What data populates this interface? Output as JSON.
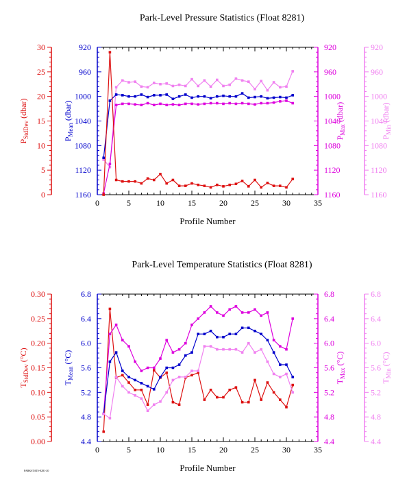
{
  "footer": "PARKSTATS-8281-20",
  "colors": {
    "stddev": "#dd1111",
    "mean": "#0000cc",
    "max": "#dd00dd",
    "min": "#f080f0",
    "axis_black": "#000000"
  },
  "chart_data": [
    {
      "type": "line",
      "title": "Park-Level Pressure Statistics (Float 8281)",
      "xlabel": "Profile Number",
      "xlim": [
        0,
        35
      ],
      "xticks": [
        0,
        5,
        10,
        15,
        20,
        25,
        30,
        35
      ],
      "grid": false,
      "axes": {
        "stddev": {
          "label_main": "P",
          "label_sub": "StdDev",
          "label_unit": " (dbar)",
          "range": [
            0,
            30
          ],
          "ticks": [
            "0",
            "5",
            "10",
            "15",
            "20",
            "25",
            "30"
          ],
          "reversed": false
        },
        "mean": {
          "label_main": "P",
          "label_sub": "Mean",
          "label_unit": " (dbar)",
          "range": [
            920,
            1160
          ],
          "ticks": [
            "920",
            "960",
            "1000",
            "1040",
            "1080",
            "1120",
            "1160"
          ],
          "reversed": true
        },
        "max": {
          "label_main": "P",
          "label_sub": "Max",
          "label_unit": " (dbar)",
          "range": [
            920,
            1160
          ],
          "ticks": [
            "920",
            "960",
            "1000",
            "1040",
            "1080",
            "1120",
            "1160"
          ],
          "reversed": true
        },
        "min": {
          "label_main": "P",
          "label_sub": "Min",
          "label_unit": " (dbar)",
          "range": [
            920,
            1160
          ],
          "ticks": [
            "920",
            "960",
            "1000",
            "1040",
            "1080",
            "1120",
            "1160"
          ],
          "reversed": true
        }
      },
      "series": [
        {
          "axis": "min",
          "values": [
            1103,
            1115,
            985,
            974,
            977,
            976,
            984,
            985,
            978,
            980,
            979,
            983,
            981,
            983,
            972,
            983,
            974,
            984,
            973,
            983,
            981,
            971,
            974,
            976,
            988,
            975,
            990,
            977,
            985,
            984,
            959
          ]
        },
        {
          "axis": "mean",
          "values": [
            1100,
            1007,
            997,
            998,
            1000,
            1000,
            997,
            1001,
            998,
            998,
            997,
            1004,
            1000,
            997,
            1002,
            1000,
            1000,
            1003,
            1000,
            999,
            1000,
            1000,
            995,
            1002,
            1001,
            1000,
            1003,
            1002,
            1001,
            1002,
            998
          ]
        },
        {
          "axis": "max",
          "values": [
            1158,
            1110,
            1014,
            1012,
            1012,
            1013,
            1014,
            1011,
            1014,
            1012,
            1014,
            1013,
            1014,
            1012,
            1012,
            1013,
            1012,
            1011,
            1011,
            1012,
            1011,
            1012,
            1011,
            1012,
            1013,
            1011,
            1011,
            1010,
            1008,
            1007,
            1011
          ]
        },
        {
          "axis": "stddev",
          "values": [
            0.0,
            29.0,
            3.0,
            2.7,
            2.7,
            2.7,
            2.3,
            3.3,
            3.0,
            4.2,
            2.3,
            3.0,
            1.8,
            1.8,
            2.3,
            2.0,
            1.8,
            1.5,
            2.0,
            1.7,
            2.0,
            2.2,
            2.8,
            1.7,
            3.0,
            1.5,
            2.4,
            1.8,
            1.8,
            1.5,
            3.2
          ]
        }
      ]
    },
    {
      "type": "line",
      "title": "Park-Level Temperature Statistics (Float 8281)",
      "xlabel": "Profile Number",
      "xlim": [
        0,
        35
      ],
      "xticks": [
        0,
        5,
        10,
        15,
        20,
        25,
        30,
        35
      ],
      "grid": false,
      "axes": {
        "stddev": {
          "label_main": "T",
          "label_sub": "StdDev",
          "label_unit": " (°C)",
          "range": [
            0,
            0.3
          ],
          "ticks": [
            "0.00",
            "0.05",
            "0.10",
            "0.15",
            "0.20",
            "0.25",
            "0.30"
          ],
          "reversed": false
        },
        "mean": {
          "label_main": "T",
          "label_sub": "Mean",
          "label_unit": " (°C)",
          "range": [
            4.4,
            6.8
          ],
          "ticks": [
            "4.4",
            "4.8",
            "5.2",
            "5.6",
            "6.0",
            "6.4",
            "6.8"
          ],
          "reversed": false
        },
        "max": {
          "label_main": "T",
          "label_sub": "Max",
          "label_unit": " (°C)",
          "range": [
            4.4,
            6.8
          ],
          "ticks": [
            "4.4",
            "4.8",
            "5.2",
            "5.6",
            "6.0",
            "6.4",
            "6.8"
          ],
          "reversed": false
        },
        "min": {
          "label_main": "T",
          "label_sub": "Min",
          "label_unit": " (°C)",
          "range": [
            4.4,
            6.8
          ],
          "ticks": [
            "4.4",
            "4.8",
            "5.2",
            "5.6",
            "6.0",
            "6.4",
            "6.8"
          ],
          "reversed": false
        }
      },
      "series": [
        {
          "axis": "stddev",
          "values": [
            0.02,
            0.27,
            0.13,
            0.135,
            0.12,
            0.105,
            0.105,
            0.075,
            0.145,
            0.13,
            0.14,
            0.08,
            0.075,
            0.13,
            0.135,
            0.14,
            0.085,
            0.105,
            0.09,
            0.09,
            0.105,
            0.11,
            0.08,
            0.08,
            0.125,
            0.085,
            0.12,
            0.1,
            0.085,
            0.07,
            0.115
          ]
        },
        {
          "axis": "max",
          "values": [
            4.85,
            6.15,
            6.3,
            6.05,
            5.95,
            5.7,
            5.55,
            5.6,
            5.6,
            5.75,
            6.05,
            5.85,
            5.9,
            6.0,
            6.3,
            6.4,
            6.5,
            6.6,
            6.5,
            6.45,
            6.55,
            6.6,
            6.5,
            6.5,
            6.55,
            6.45,
            6.5,
            6.05,
            5.95,
            5.9,
            6.4
          ]
        },
        {
          "axis": "mean",
          "values": [
            4.85,
            5.7,
            5.85,
            5.55,
            5.45,
            5.4,
            5.35,
            5.3,
            5.25,
            5.45,
            5.6,
            5.6,
            5.65,
            5.8,
            5.85,
            6.15,
            6.15,
            6.2,
            6.1,
            6.1,
            6.15,
            6.15,
            6.25,
            6.25,
            6.2,
            6.15,
            6.05,
            5.85,
            5.65,
            5.65,
            5.45
          ]
        },
        {
          "axis": "min",
          "values": [
            4.85,
            4.78,
            5.45,
            5.3,
            5.2,
            5.15,
            5.1,
            4.9,
            5.0,
            5.05,
            5.2,
            5.4,
            5.45,
            5.45,
            5.55,
            5.55,
            5.95,
            5.95,
            5.9,
            5.9,
            5.9,
            5.9,
            5.85,
            6.0,
            5.85,
            5.9,
            5.7,
            5.5,
            5.45,
            5.5,
            5.2
          ]
        }
      ]
    }
  ]
}
